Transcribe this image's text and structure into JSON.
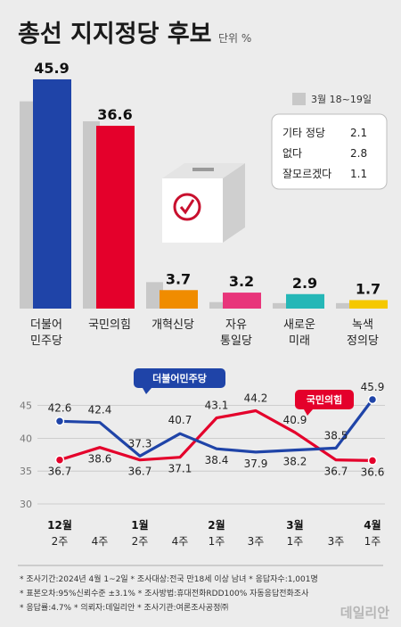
{
  "header": {
    "title": "총선 지지정당 후보",
    "unit": "단위 %"
  },
  "legend": {
    "previous_label": "3월 18~19일"
  },
  "others_box": [
    {
      "label": "기타 정당",
      "value": "2.1"
    },
    {
      "label": "없다",
      "value": "2.8"
    },
    {
      "label": "잘모르겠다",
      "value": "1.1"
    }
  ],
  "colors": {
    "democratic": "#1f44a8",
    "ppp": "#e4002b",
    "reform": "#f08c00",
    "liberal": "#e8357a",
    "future": "#25b7b7",
    "green_justice": "#f5c800",
    "previous": "#c8c8c8",
    "background": "#ececec"
  },
  "chart_data": [
    {
      "type": "bar",
      "categories": [
        "더불어\n민주당",
        "국민의힘",
        "개혁신당",
        "자유\n통일당",
        "새로운\n미래",
        "녹색\n정의당"
      ],
      "series": [
        {
          "name": "3월 18~19일",
          "values": [
            41.5,
            37.5,
            5.3,
            1.3,
            1.1,
            1.1
          ]
        },
        {
          "values": [
            45.9,
            36.6,
            3.7,
            3.2,
            2.9,
            1.7
          ]
        }
      ],
      "value_labels": [
        "45.9",
        "36.6",
        "3.7",
        "3.2",
        "2.9",
        "1.7"
      ]
    },
    {
      "type": "line",
      "x": [
        "12월\n2주",
        "4주",
        "1월\n2주",
        "4주",
        "2월\n1주",
        "3주",
        "3월\n1주",
        "3주",
        "4월\n1주"
      ],
      "series": [
        {
          "name": "더불어민주당",
          "values": [
            42.6,
            42.4,
            37.3,
            40.7,
            38.4,
            37.9,
            38.2,
            38.5,
            45.9
          ]
        },
        {
          "name": "국민의힘",
          "values": [
            36.7,
            38.6,
            36.7,
            37.1,
            43.1,
            44.2,
            40.9,
            36.7,
            36.6
          ]
        }
      ],
      "dem_labels": [
        "42.6",
        "42.4",
        "37.3",
        "40.7",
        "38.4",
        "37.9",
        "38.2",
        "38.5",
        "45.9"
      ],
      "ppp_labels": [
        "36.7",
        "38.6",
        "36.7",
        "37.1",
        "43.1",
        "44.2",
        "40.9",
        "36.7",
        "36.6"
      ],
      "yticks": [
        "45",
        "40",
        "35",
        "30"
      ],
      "ylim": [
        30,
        47
      ]
    }
  ],
  "footer": {
    "line1": "* 조사기간:2024년 4월 1~2일  * 조사대상:전국 만18세 이상 남녀  * 응답자수:1,001명",
    "line2": "* 표본오차:95%신뢰수준 ±3.1%  * 조사방법:휴대전화RDD100% 자동응답전화조사",
    "line3": "* 응답률:4.7%  * 의뢰자:데일리안  * 조사기관:여론조사공정㈜"
  },
  "brand": {
    "logo": "데일리안"
  }
}
